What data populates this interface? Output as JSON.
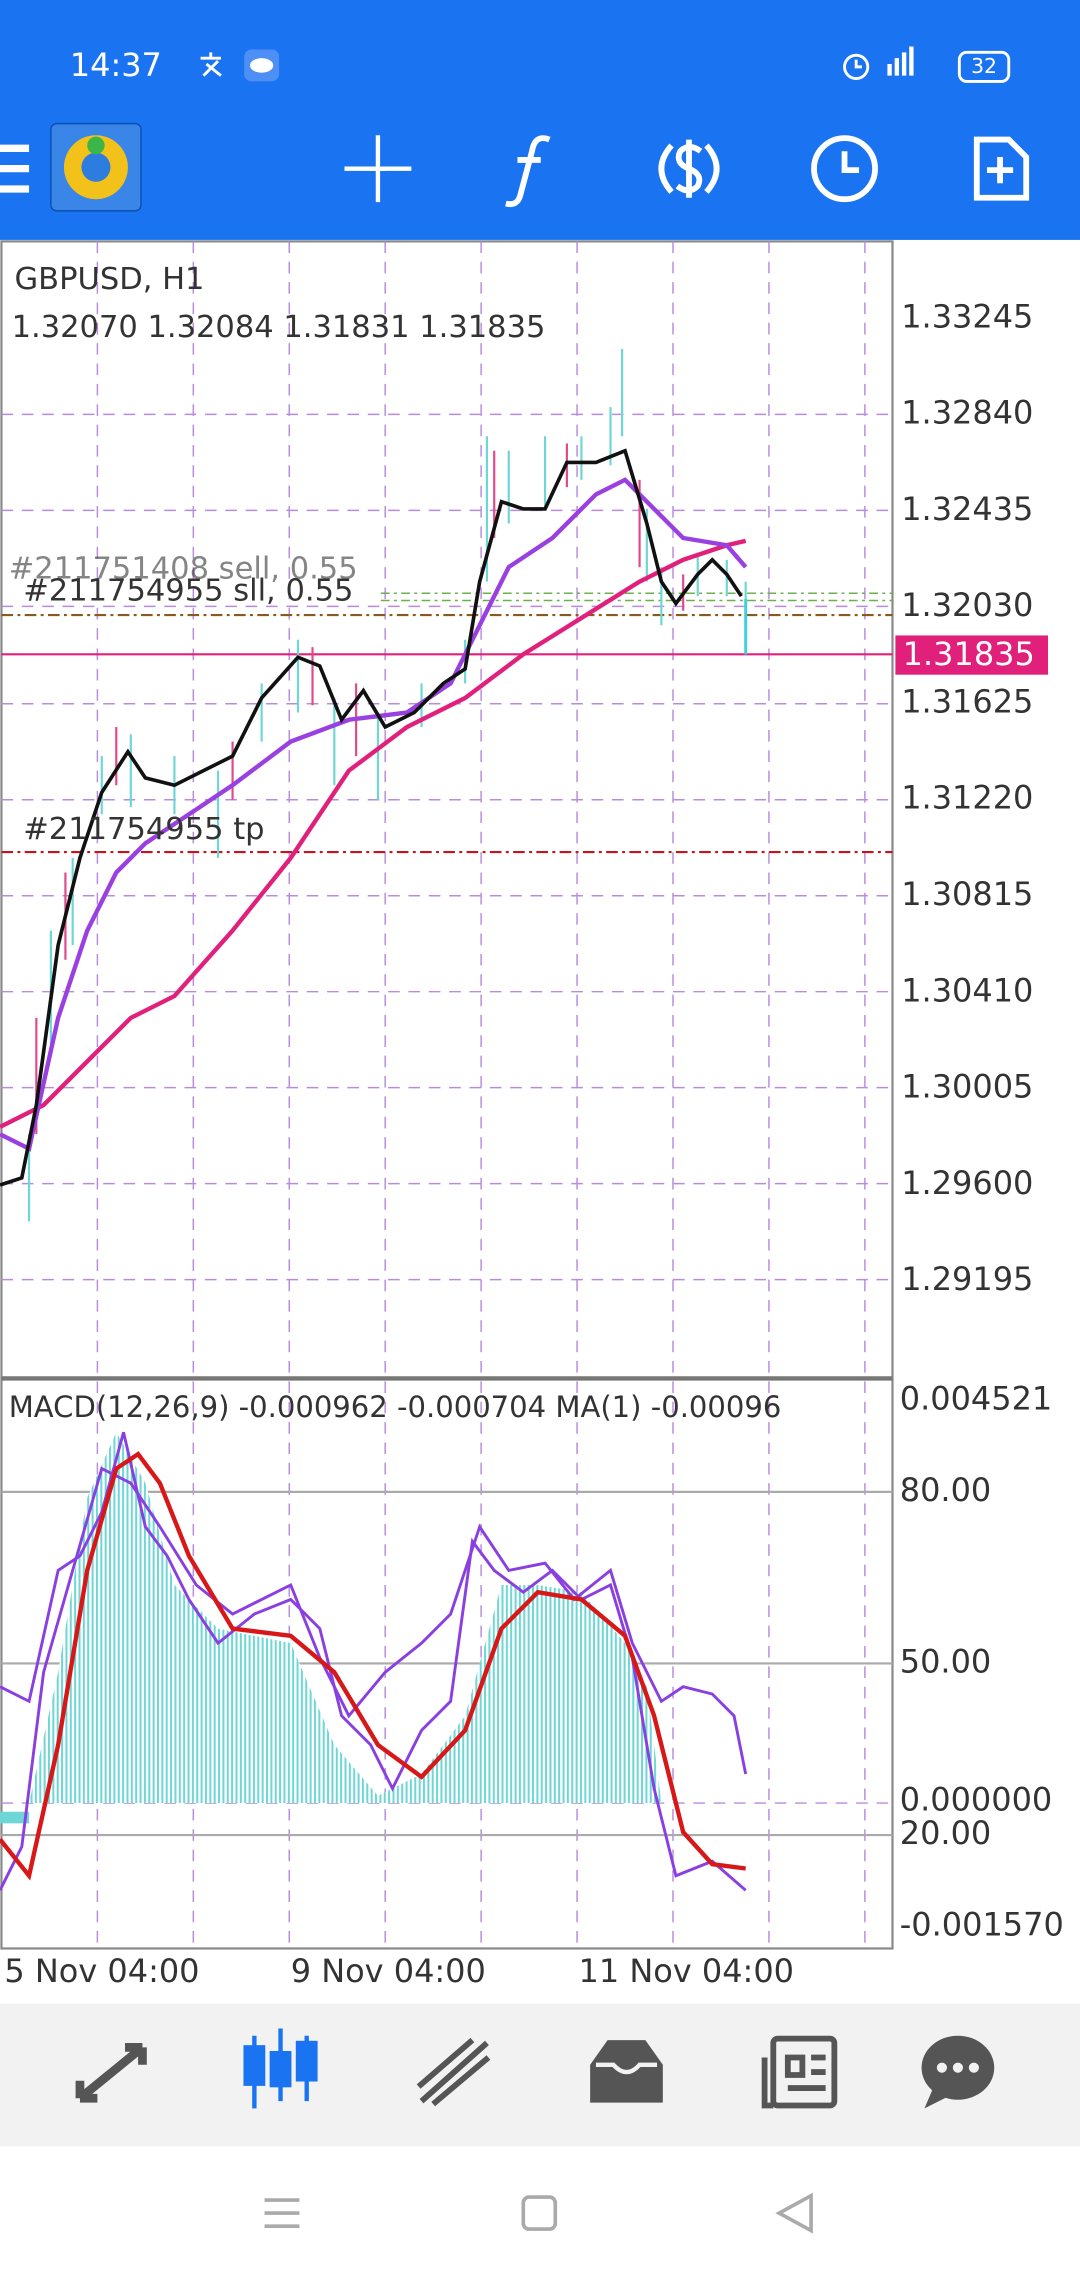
{
  "status_bar": {
    "time": "14:37",
    "battery": "32"
  },
  "chart": {
    "symbol": "GBPUSD, H1",
    "ohlc": "1.32070 1.32084 1.31831 1.31835",
    "price_axis": [
      "1.33245",
      "1.32840",
      "1.32435",
      "1.32030",
      "1.31625",
      "1.31220",
      "1.30815",
      "1.30410",
      "1.30005",
      "1.29600",
      "1.29195"
    ],
    "current_price": "1.31835",
    "orders": [
      "#211751408 sell, 0.55",
      "#211754955 sll, 0.55",
      "#211754955 tp"
    ],
    "indicator": {
      "label": "MACD(12,26,9) -0.000962 -0.000704 MA(1) -0.00096",
      "axis": [
        "0.004521",
        "80.00",
        "50.00",
        "0.000000",
        "20.00",
        "-0.001570"
      ]
    },
    "time_axis": [
      "5 Nov 04:00",
      "9 Nov 04:00",
      "11 Nov 04:00"
    ]
  }
}
